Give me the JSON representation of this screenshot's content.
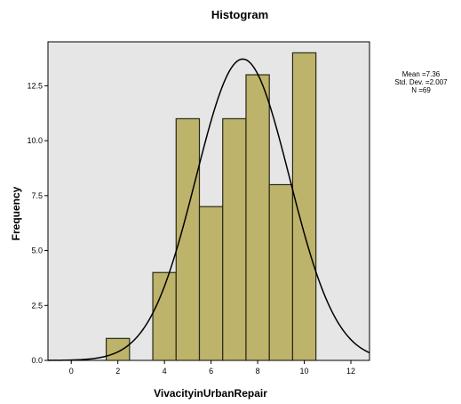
{
  "chart_data": {
    "type": "bar",
    "subtype": "histogram",
    "title": "Histogram",
    "xlabel": "VivacityinUrbanRepair",
    "ylabel": "Frequency",
    "xlim": [
      -1,
      12.8
    ],
    "ylim": [
      0,
      14.5
    ],
    "x_ticks": [
      0,
      2,
      4,
      6,
      8,
      10,
      12
    ],
    "x_tick_labels": [
      "0",
      "2",
      "4",
      "6",
      "8",
      "10",
      "12"
    ],
    "y_ticks": [
      0,
      2.5,
      5,
      7.5,
      10,
      12.5
    ],
    "y_tick_labels": [
      "0.0",
      "2.5",
      "5.0",
      "7.5",
      "10.0",
      "12.5"
    ],
    "grid": false,
    "bins": [
      {
        "start": 1.5,
        "end": 2.5,
        "count": 1
      },
      {
        "start": 3.5,
        "end": 4.5,
        "count": 4
      },
      {
        "start": 4.5,
        "end": 5.5,
        "count": 11
      },
      {
        "start": 5.5,
        "end": 6.5,
        "count": 7
      },
      {
        "start": 6.5,
        "end": 7.5,
        "count": 11
      },
      {
        "start": 7.5,
        "end": 8.5,
        "count": 13
      },
      {
        "start": 8.5,
        "end": 9.5,
        "count": 8
      },
      {
        "start": 9.5,
        "end": 10.5,
        "count": 14
      }
    ],
    "normal_curve": {
      "mean": 7.36,
      "std_dev": 2.007,
      "n": 69
    },
    "stats": {
      "mean_text": "Mean =7.36",
      "std_text": "Std. Dev. =2.007",
      "n_text": "N =69"
    },
    "colors": {
      "bar_fill": "#bdb36a",
      "bar_stroke": "#2a2a1a",
      "plot_background": "#e6e6e6",
      "curve": "#000000"
    }
  }
}
